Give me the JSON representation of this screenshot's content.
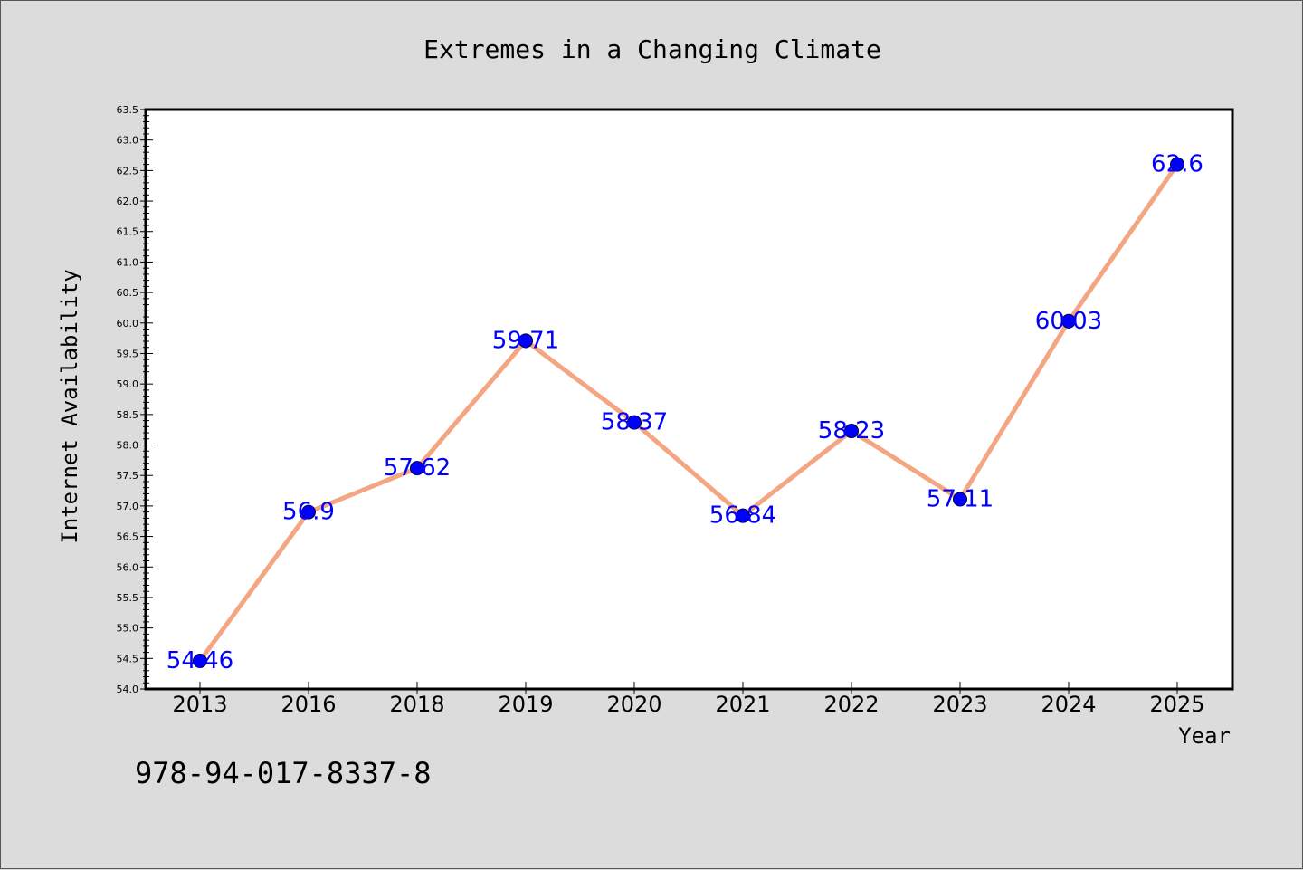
{
  "chart_data": {
    "type": "line",
    "title": "Extremes in a Changing Climate",
    "xlabel": "Year",
    "ylabel": "Internet Availability",
    "categories": [
      "2013",
      "2016",
      "2018",
      "2019",
      "2020",
      "2021",
      "2022",
      "2023",
      "2024",
      "2025"
    ],
    "values": [
      54.46,
      56.9,
      57.62,
      59.71,
      58.37,
      56.84,
      58.23,
      57.11,
      60.03,
      62.6
    ],
    "data_labels": [
      "54.46",
      "56.9",
      "57.62",
      "59.71",
      "58.37",
      "56.84",
      "58.23",
      "57.11",
      "60.03",
      "62.6"
    ],
    "ylim": [
      54.0,
      63.5
    ],
    "yticks": [
      "54.0",
      "54.5",
      "55.0",
      "55.5",
      "56.0",
      "56.5",
      "57.0",
      "57.5",
      "58.0",
      "58.5",
      "59.0",
      "59.5",
      "60.0",
      "60.5",
      "61.0",
      "61.5",
      "62.0",
      "62.5",
      "63.0",
      "63.5"
    ],
    "grid": false,
    "line_color": "#f4a582",
    "marker_color": "#0000ff",
    "label_color": "#0000ff"
  },
  "footer": {
    "code": "978-94-017-8337-8"
  }
}
